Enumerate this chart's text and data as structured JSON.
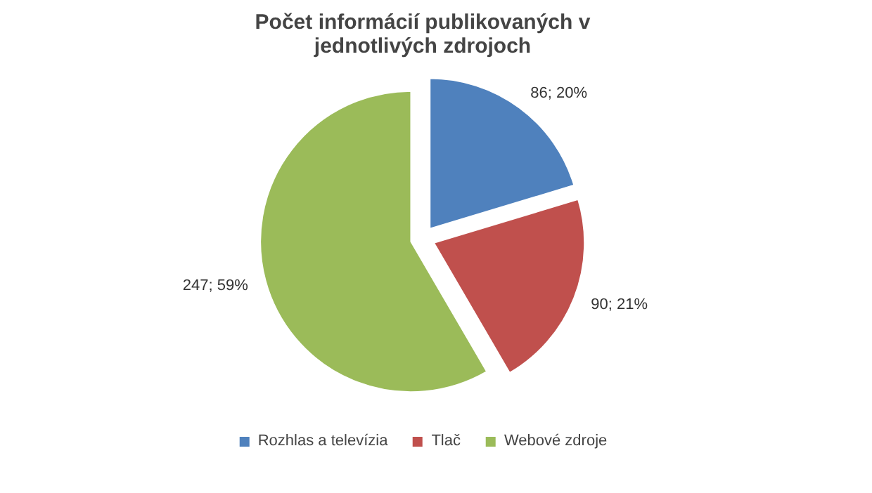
{
  "chart_data": {
    "type": "pie",
    "title": "Počet informácií publikovaných v jednotlivých zdrojoch",
    "categories": [
      "Rozhlas a televízia",
      "Tlač",
      "Webové zdroje"
    ],
    "values": [
      86,
      90,
      247
    ],
    "colors": [
      "#4f81bd",
      "#c0504d",
      "#9bbb59"
    ],
    "value_labels": [
      "86; 20%",
      "90; 21%",
      "247; 59%"
    ],
    "legend": "bottom"
  }
}
